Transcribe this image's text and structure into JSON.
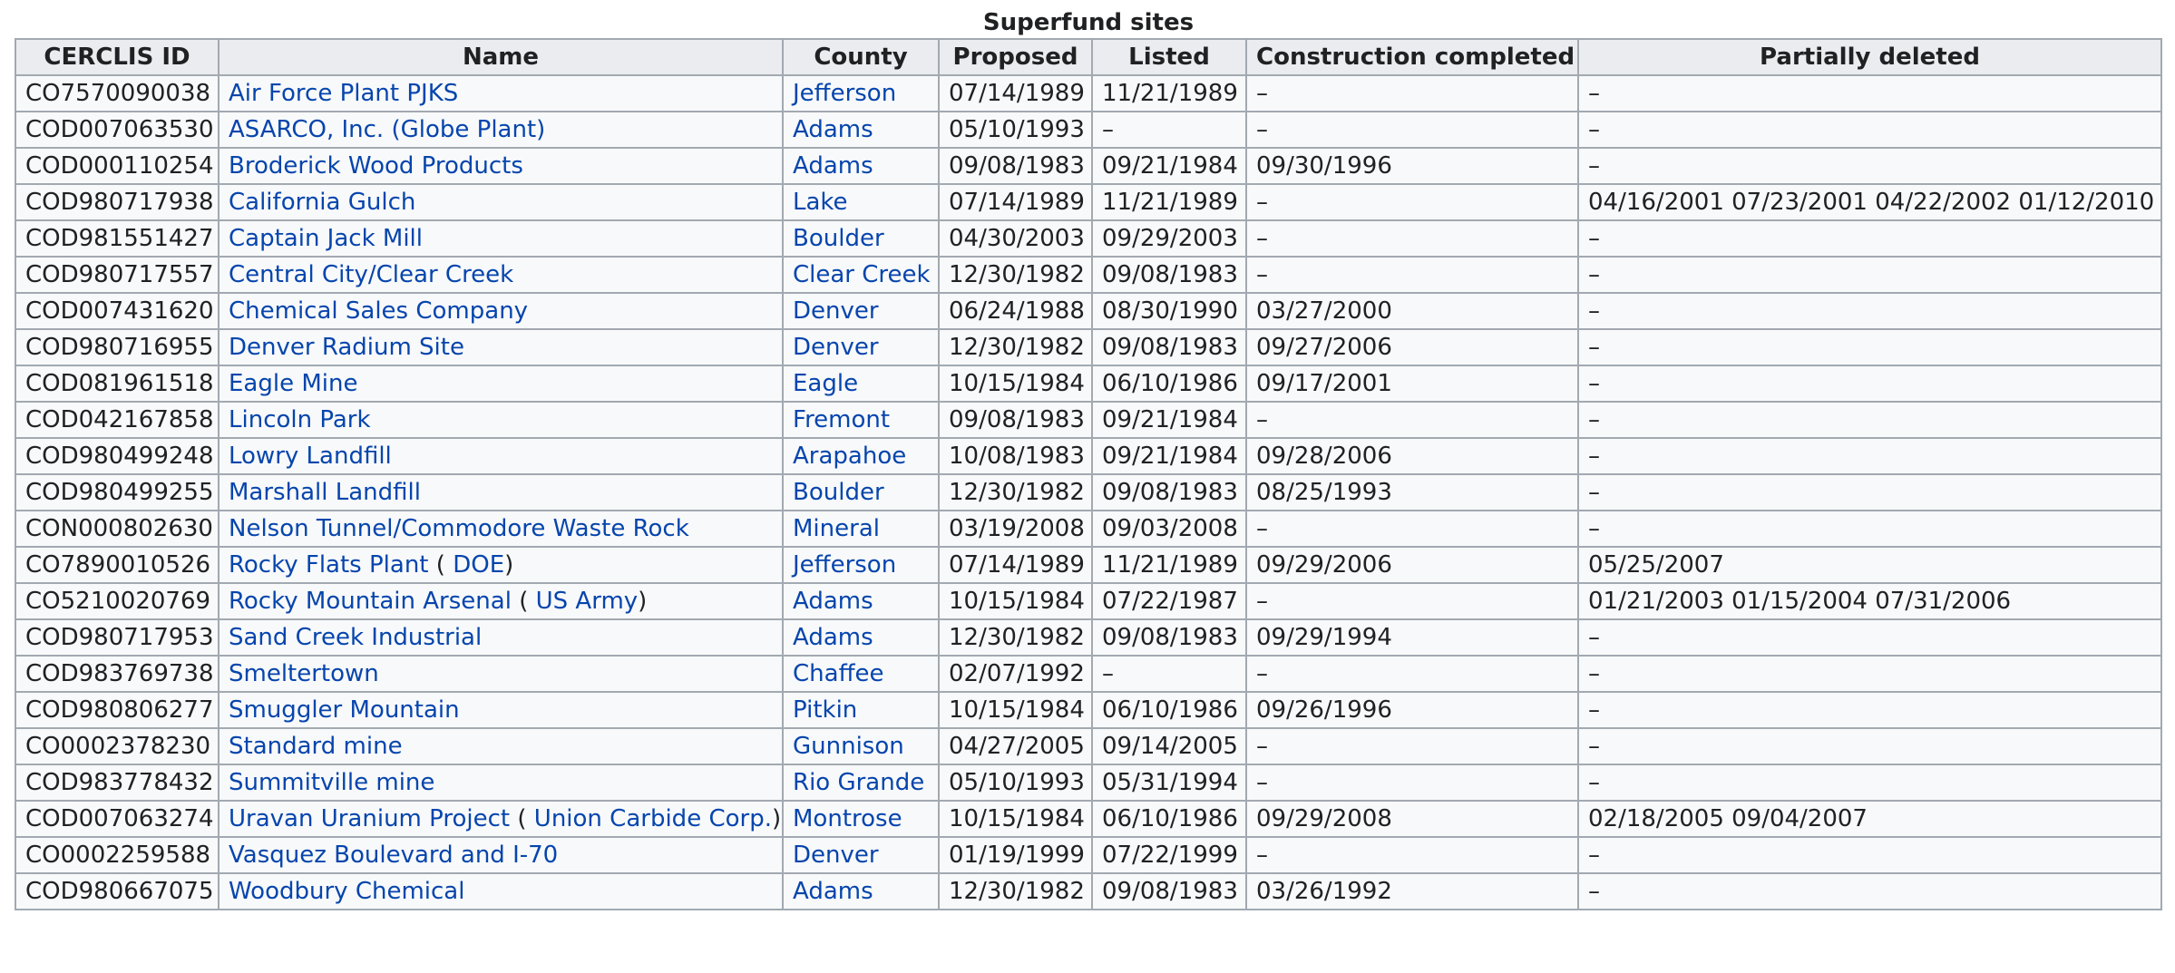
{
  "table": {
    "caption": "Superfund sites",
    "headers": [
      "CERCLIS ID",
      "Name",
      "County",
      "Proposed",
      "Listed",
      "Construction completed",
      "Partially deleted"
    ],
    "rows": [
      {
        "id": "CO7570090038",
        "name": "Air Force Plant PJKS",
        "name_extra": "",
        "county": "Jefferson",
        "proposed": "07/14/1989",
        "listed": "11/21/1989",
        "construction": "–",
        "deleted": "–"
      },
      {
        "id": "COD007063530",
        "name": "ASARCO, Inc. (Globe Plant)",
        "name_extra": "",
        "county": "Adams",
        "proposed": "05/10/1993",
        "listed": "–",
        "construction": "–",
        "deleted": "–"
      },
      {
        "id": "COD000110254",
        "name": "Broderick Wood Products",
        "name_extra": "",
        "county": "Adams",
        "proposed": "09/08/1983",
        "listed": "09/21/1984",
        "construction": "09/30/1996",
        "deleted": "–"
      },
      {
        "id": "COD980717938",
        "name": "California Gulch",
        "name_extra": "",
        "county": "Lake",
        "proposed": "07/14/1989",
        "listed": "11/21/1989",
        "construction": "–",
        "deleted": "04/16/2001 07/23/2001 04/22/2002 01/12/2010"
      },
      {
        "id": "COD981551427",
        "name": "Captain Jack Mill",
        "name_extra": "",
        "county": "Boulder",
        "proposed": "04/30/2003",
        "listed": "09/29/2003",
        "construction": "–",
        "deleted": "–"
      },
      {
        "id": "COD980717557",
        "name": "Central City/Clear Creek",
        "name_extra": "",
        "county": "Clear Creek",
        "proposed": "12/30/1982",
        "listed": "09/08/1983",
        "construction": "–",
        "deleted": "–"
      },
      {
        "id": "COD007431620",
        "name": "Chemical Sales Company",
        "name_extra": "",
        "county": "Denver",
        "proposed": "06/24/1988",
        "listed": "08/30/1990",
        "construction": "03/27/2000",
        "deleted": "–"
      },
      {
        "id": "COD980716955",
        "name": "Denver Radium Site",
        "name_extra": "",
        "county": "Denver",
        "proposed": "12/30/1982",
        "listed": "09/08/1983",
        "construction": "09/27/2006",
        "deleted": "–"
      },
      {
        "id": "COD081961518",
        "name": "Eagle Mine",
        "name_extra": "",
        "county": "Eagle",
        "proposed": "10/15/1984",
        "listed": "06/10/1986",
        "construction": "09/17/2001",
        "deleted": "–"
      },
      {
        "id": "COD042167858",
        "name": "Lincoln Park",
        "name_extra": "",
        "county": "Fremont",
        "proposed": "09/08/1983",
        "listed": "09/21/1984",
        "construction": "–",
        "deleted": "–"
      },
      {
        "id": "COD980499248",
        "name": "Lowry Landfill",
        "name_extra": "",
        "county": "Arapahoe",
        "proposed": "10/08/1983",
        "listed": "09/21/1984",
        "construction": "09/28/2006",
        "deleted": "–"
      },
      {
        "id": "COD980499255",
        "name": "Marshall Landfill",
        "name_extra": "",
        "county": "Boulder",
        "proposed": "12/30/1982",
        "listed": "09/08/1983",
        "construction": "08/25/1993",
        "deleted": "–"
      },
      {
        "id": "CON000802630",
        "name": "Nelson Tunnel/Commodore Waste Rock",
        "name_extra": "",
        "county": "Mineral",
        "proposed": "03/19/2008",
        "listed": "09/03/2008",
        "construction": "–",
        "deleted": "–"
      },
      {
        "id": "CO7890010526",
        "name": "Rocky Flats Plant",
        "name_extra": "DOE",
        "county": "Jefferson",
        "proposed": "07/14/1989",
        "listed": "11/21/1989",
        "construction": "09/29/2006",
        "deleted": "05/25/2007"
      },
      {
        "id": "CO5210020769",
        "name": "Rocky Mountain Arsenal",
        "name_extra": "US Army",
        "county": "Adams",
        "proposed": "10/15/1984",
        "listed": "07/22/1987",
        "construction": "–",
        "deleted": "01/21/2003 01/15/2004 07/31/2006"
      },
      {
        "id": "COD980717953",
        "name": "Sand Creek Industrial",
        "name_extra": "",
        "county": "Adams",
        "proposed": "12/30/1982",
        "listed": "09/08/1983",
        "construction": "09/29/1994",
        "deleted": "–"
      },
      {
        "id": "COD983769738",
        "name": "Smeltertown",
        "name_extra": "",
        "county": "Chaffee",
        "proposed": "02/07/1992",
        "listed": "–",
        "construction": "–",
        "deleted": "–"
      },
      {
        "id": "COD980806277",
        "name": "Smuggler Mountain",
        "name_extra": "",
        "county": "Pitkin",
        "proposed": "10/15/1984",
        "listed": "06/10/1986",
        "construction": "09/26/1996",
        "deleted": "–"
      },
      {
        "id": "CO0002378230",
        "name": "Standard mine",
        "name_extra": "",
        "county": "Gunnison",
        "proposed": "04/27/2005",
        "listed": "09/14/2005",
        "construction": "–",
        "deleted": "–"
      },
      {
        "id": "COD983778432",
        "name": "Summitville mine",
        "name_extra": "",
        "county": "Rio Grande",
        "proposed": "05/10/1993",
        "listed": "05/31/1994",
        "construction": "–",
        "deleted": "–"
      },
      {
        "id": "COD007063274",
        "name": "Uravan Uranium Project",
        "name_extra": "Union Carbide Corp.",
        "county": "Montrose",
        "proposed": "10/15/1984",
        "listed": "06/10/1986",
        "construction": "09/29/2008",
        "deleted": "02/18/2005 09/04/2007"
      },
      {
        "id": "CO0002259588",
        "name": "Vasquez Boulevard and I-70",
        "name_extra": "",
        "county": "Denver",
        "proposed": "01/19/1999",
        "listed": "07/22/1999",
        "construction": "–",
        "deleted": "–"
      },
      {
        "id": "COD980667075",
        "name": "Woodbury Chemical",
        "name_extra": "",
        "county": "Adams",
        "proposed": "12/30/1982",
        "listed": "09/08/1983",
        "construction": "03/26/1992",
        "deleted": "–"
      }
    ]
  },
  "colors": {
    "link": "#3366cc",
    "header_bg": "#eaecf0",
    "cell_bg": "#f8f9fa",
    "border": "#a2a9b1",
    "text": "#202122"
  }
}
